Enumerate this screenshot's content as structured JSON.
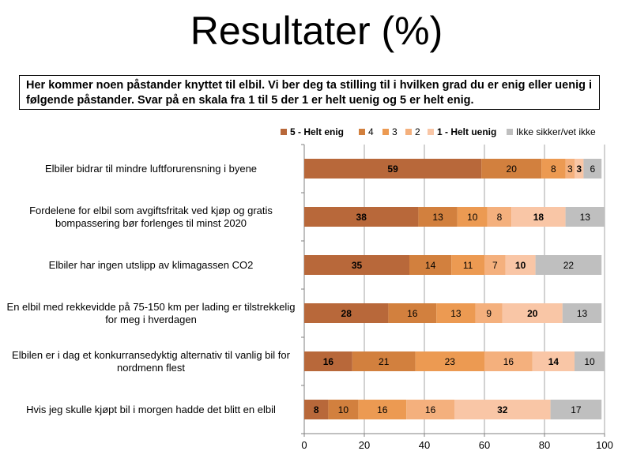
{
  "title": "Resultater (%)",
  "question": "Her kommer noen påstander knyttet til elbil. Vi ber deg ta stilling til i hvilken grad du er enig eller uenig i følgende påstander. Svar på en skala fra 1 til 5 der 1 er helt uenig og 5 er helt enig.",
  "chart_data": {
    "type": "bar",
    "orientation": "horizontal",
    "stacked": true,
    "categories": [
      "Elbiler bidrar til mindre luftforurensning i byene",
      "Fordelene for elbil som avgiftsfritak ved kjøp og gratis bompassering bør forlenges til minst 2020",
      "Elbiler har ingen utslipp av klimagassen CO2",
      "En elbil med rekkevidde på 75-150 km per lading er tilstrekkelig for meg i hverdagen",
      "Elbilen er i dag et konkurransedyktig alternativ til vanlig bil for nordmenn flest",
      "Hvis jeg skulle kjøpt bil i morgen hadde det blitt en elbil"
    ],
    "series": [
      {
        "name": "5 - Helt enig",
        "color": "#b8683a",
        "bold": true,
        "values": [
          59,
          38,
          35,
          28,
          16,
          8
        ]
      },
      {
        "name": "4",
        "color": "#d2803e",
        "bold": false,
        "values": [
          20,
          13,
          14,
          16,
          21,
          10
        ]
      },
      {
        "name": "3",
        "color": "#ec9a52",
        "bold": false,
        "values": [
          8,
          10,
          11,
          13,
          23,
          16
        ]
      },
      {
        "name": "2",
        "color": "#f4b07d",
        "bold": false,
        "values": [
          3,
          8,
          7,
          9,
          16,
          16
        ]
      },
      {
        "name": "1 - Helt uenig",
        "color": "#f9c6a6",
        "bold": true,
        "values": [
          3,
          18,
          10,
          20,
          14,
          32
        ]
      },
      {
        "name": "Ikke sikker/vet ikke",
        "color": "#bfbfbf",
        "bold": false,
        "values": [
          6,
          13,
          22,
          13,
          10,
          17
        ]
      }
    ],
    "xlim": [
      0,
      100
    ],
    "xticks": [
      0,
      20,
      40,
      60,
      80,
      100
    ],
    "grid": true,
    "legend_position": "top-right"
  }
}
